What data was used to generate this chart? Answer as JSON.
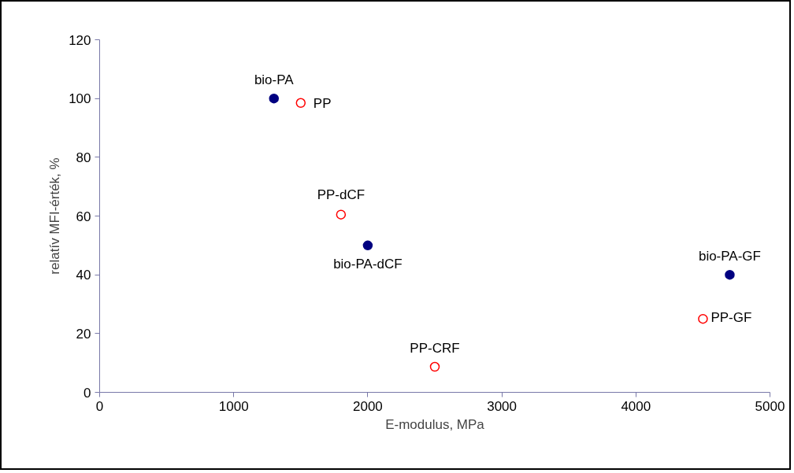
{
  "chart_data": {
    "type": "scatter",
    "xlabel": "E-modulus, MPa",
    "ylabel": "relatív MFI-érték, %",
    "xlim": [
      0,
      5000
    ],
    "xticks": [
      0,
      1000,
      2000,
      3000,
      4000,
      5000
    ],
    "ylim": [
      0,
      120
    ],
    "yticks": [
      0,
      20,
      40,
      60,
      80,
      100,
      120
    ],
    "grid": false,
    "series": [
      {
        "color": "#000080",
        "marker": "circle",
        "x": [
          1300,
          2000,
          4700
        ],
        "values": [
          100,
          50,
          40
        ]
      },
      {
        "color": "#ff0000",
        "marker": "circle",
        "x": [
          1500,
          1800,
          2500,
          4500
        ],
        "values": [
          98.5,
          60.5,
          8.7,
          25
        ]
      }
    ],
    "annotations": [
      {
        "text": "bio-PA",
        "x": 1300,
        "y": 100
      },
      {
        "text": "bio-PA-dCF",
        "x": 2000,
        "y": 50
      },
      {
        "text": "bio-PA-GF",
        "x": 4700,
        "y": 40
      },
      {
        "text": "PP",
        "x": 1500,
        "y": 98.5
      },
      {
        "text": "PP-dCF",
        "x": 1800,
        "y": 60.5
      },
      {
        "text": "PP-CRF",
        "x": 2500,
        "y": 8.7
      },
      {
        "text": "PP-GF",
        "x": 4500,
        "y": 25
      }
    ]
  }
}
